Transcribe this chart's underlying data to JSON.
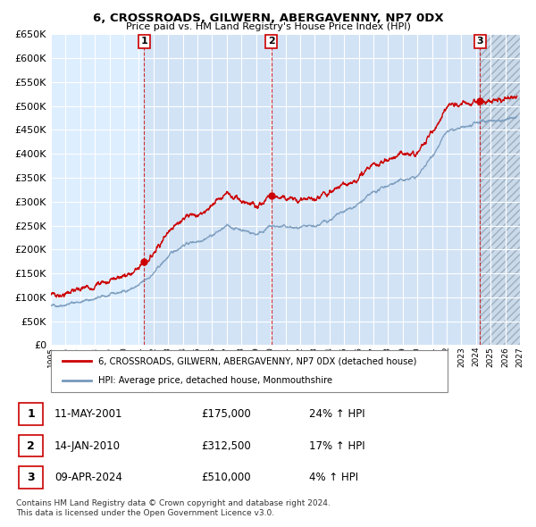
{
  "title": "6, CROSSROADS, GILWERN, ABERGAVENNY, NP7 0DX",
  "subtitle": "Price paid vs. HM Land Registry's House Price Index (HPI)",
  "legend_line1": "6, CROSSROADS, GILWERN, ABERGAVENNY, NP7 0DX (detached house)",
  "legend_line2": "HPI: Average price, detached house, Monmouthshire",
  "transactions": [
    {
      "num": 1,
      "date": "11-MAY-2001",
      "price": 175000,
      "pct": "24%",
      "dir": "↑",
      "year": 2001.36
    },
    {
      "num": 2,
      "date": "14-JAN-2010",
      "price": 312500,
      "pct": "17%",
      "dir": "↑",
      "year": 2010.04
    },
    {
      "num": 3,
      "date": "09-APR-2024",
      "price": 510000,
      "pct": "4%",
      "dir": "↑",
      "year": 2024.27
    }
  ],
  "footnote1": "Contains HM Land Registry data © Crown copyright and database right 2024.",
  "footnote2": "This data is licensed under the Open Government Licence v3.0.",
  "ylim": [
    0,
    650000
  ],
  "xlim_start": 1995.0,
  "xlim_end": 2027.0,
  "yticks": [
    0,
    50000,
    100000,
    150000,
    200000,
    250000,
    300000,
    350000,
    400000,
    450000,
    500000,
    550000,
    600000,
    650000
  ],
  "xtick_years": [
    1995,
    1996,
    1997,
    1998,
    1999,
    2000,
    2001,
    2002,
    2003,
    2004,
    2005,
    2006,
    2007,
    2008,
    2009,
    2010,
    2011,
    2012,
    2013,
    2014,
    2015,
    2016,
    2017,
    2018,
    2019,
    2020,
    2021,
    2022,
    2023,
    2024,
    2025,
    2026,
    2027
  ],
  "red_color": "#cc0000",
  "blue_color": "#7799bb",
  "blue_fill": "#ccddf0",
  "background_plot": "#ddeeff",
  "grid_color": "#ffffff",
  "hatch_fill": "#c8d8e8"
}
